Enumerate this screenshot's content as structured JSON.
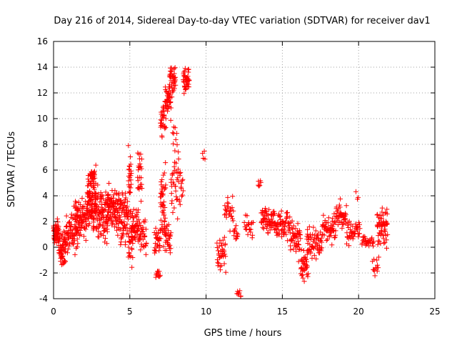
{
  "chart_data": {
    "type": "scatter",
    "title": "Day 216 of 2014, Sidereal Day-to-day VTEC variation (SDTVAR) for receiver dav1",
    "xlabel": "GPS time / hours",
    "ylabel": "SDTVAR / TECUs",
    "xlim": [
      0,
      25
    ],
    "ylim": [
      -4,
      16
    ],
    "xticks": [
      0,
      5,
      10,
      15,
      20,
      25
    ],
    "xtick_labels": [
      "0",
      "5",
      "10",
      "15",
      "20",
      "25"
    ],
    "yticks": [
      -4,
      -2,
      0,
      2,
      4,
      6,
      8,
      10,
      12,
      14,
      16
    ],
    "ytick_labels": [
      "-4",
      "-2",
      "0",
      "2",
      "4",
      "6",
      "8",
      "10",
      "12",
      "14",
      "16"
    ],
    "grid": true,
    "marker": "+",
    "color": "#ff0000",
    "series": [
      {
        "name": "SDTVAR",
        "clusters": [
          {
            "x": [
              0.0,
              0.35
            ],
            "y_center": 1.2,
            "y_spread": 0.9,
            "n": 60
          },
          {
            "x": [
              0.35,
              0.8
            ],
            "y_center": 0.2,
            "y_spread": 1.2,
            "n": 50
          },
          {
            "x": [
              0.5,
              0.8
            ],
            "y_center": -1.0,
            "y_spread": 0.4,
            "n": 10
          },
          {
            "x": [
              0.8,
              1.6
            ],
            "y_center": 1.2,
            "y_spread": 1.5,
            "n": 70
          },
          {
            "x": [
              1.4,
              2.2
            ],
            "y_center": 2.3,
            "y_spread": 1.6,
            "n": 80
          },
          {
            "x": [
              2.2,
              2.8
            ],
            "y_center": 3.6,
            "y_spread": 2.2,
            "n": 110
          },
          {
            "x": [
              2.4,
              2.7
            ],
            "y_center": 5.6,
            "y_spread": 0.5,
            "n": 20
          },
          {
            "x": [
              2.8,
              3.6
            ],
            "y_center": 2.4,
            "y_spread": 1.8,
            "n": 90
          },
          {
            "x": [
              3.5,
              4.3
            ],
            "y_center": 3.0,
            "y_spread": 1.7,
            "n": 90
          },
          {
            "x": [
              4.3,
              4.9
            ],
            "y_center": 2.2,
            "y_spread": 2.0,
            "n": 70
          },
          {
            "x": [
              4.9,
              5.1
            ],
            "y_center": 5.5,
            "y_spread": 2.5,
            "n": 25
          },
          {
            "x": [
              4.9,
              5.2
            ],
            "y_center": 0.2,
            "y_spread": 1.8,
            "n": 25
          },
          {
            "x": [
              5.1,
              5.6
            ],
            "y_center": 1.6,
            "y_spread": 1.4,
            "n": 50
          },
          {
            "x": [
              5.5,
              5.8
            ],
            "y_center": 5.5,
            "y_spread": 2.0,
            "n": 25
          },
          {
            "x": [
              5.6,
              6.1
            ],
            "y_center": 0.9,
            "y_spread": 1.1,
            "n": 35
          },
          {
            "x": [
              6.6,
              7.0
            ],
            "y_center": 0.5,
            "y_spread": 1.0,
            "n": 30
          },
          {
            "x": [
              6.7,
              7.0
            ],
            "y_center": -2.1,
            "y_spread": 0.3,
            "n": 12
          },
          {
            "x": [
              7.0,
              7.35
            ],
            "y_center": 3.5,
            "y_spread": 3.0,
            "n": 50
          },
          {
            "x": [
              7.0,
              7.3
            ],
            "y_center": 10.0,
            "y_spread": 1.2,
            "n": 25
          },
          {
            "x": [
              7.3,
              7.7
            ],
            "y_center": 11.5,
            "y_spread": 1.5,
            "n": 40
          },
          {
            "x": [
              7.3,
              7.7
            ],
            "y_center": 0.8,
            "y_spread": 1.2,
            "n": 30
          },
          {
            "x": [
              7.6,
              8.0
            ],
            "y_center": 13.0,
            "y_spread": 1.2,
            "n": 40
          },
          {
            "x": [
              7.7,
              8.2
            ],
            "y_center": 6.0,
            "y_spread": 3.0,
            "n": 40
          },
          {
            "x": [
              8.2,
              8.5
            ],
            "y_center": 4.5,
            "y_spread": 1.0,
            "n": 15
          },
          {
            "x": [
              8.5,
              8.9
            ],
            "y_center": 13.0,
            "y_spread": 1.1,
            "n": 40
          },
          {
            "x": [
              9.75,
              9.95
            ],
            "y_center": 7.0,
            "y_spread": 0.8,
            "n": 4
          },
          {
            "x": [
              10.7,
              11.3
            ],
            "y_center": -0.5,
            "y_spread": 1.3,
            "n": 35
          },
          {
            "x": [
              11.2,
              11.8
            ],
            "y_center": 2.7,
            "y_spread": 1.2,
            "n": 25
          },
          {
            "x": [
              11.8,
              12.1
            ],
            "y_center": 1.0,
            "y_spread": 0.6,
            "n": 12
          },
          {
            "x": [
              12.0,
              12.3
            ],
            "y_center": -3.7,
            "y_spread": 0.25,
            "n": 8
          },
          {
            "x": [
              12.5,
              13.1
            ],
            "y_center": 1.8,
            "y_spread": 1.0,
            "n": 20
          },
          {
            "x": [
              13.4,
              13.6
            ],
            "y_center": 4.9,
            "y_spread": 0.35,
            "n": 6
          },
          {
            "x": [
              13.6,
              14.5
            ],
            "y_center": 2.2,
            "y_spread": 1.2,
            "n": 60
          },
          {
            "x": [
              14.5,
              15.5
            ],
            "y_center": 1.7,
            "y_spread": 1.0,
            "n": 60
          },
          {
            "x": [
              15.5,
              16.2
            ],
            "y_center": 0.7,
            "y_spread": 1.3,
            "n": 50
          },
          {
            "x": [
              16.2,
              16.7
            ],
            "y_center": -1.4,
            "y_spread": 1.1,
            "n": 40
          },
          {
            "x": [
              16.6,
              17.6
            ],
            "y_center": 0.3,
            "y_spread": 1.3,
            "n": 60
          },
          {
            "x": [
              17.6,
              18.5
            ],
            "y_center": 1.4,
            "y_spread": 0.9,
            "n": 55
          },
          {
            "x": [
              18.5,
              19.2
            ],
            "y_center": 2.4,
            "y_spread": 1.0,
            "n": 45
          },
          {
            "x": [
              19.2,
              20.1
            ],
            "y_center": 1.2,
            "y_spread": 0.8,
            "n": 45
          },
          {
            "x": [
              19.8,
              20.0
            ],
            "y_center": 4.2,
            "y_spread": 0.4,
            "n": 3
          },
          {
            "x": [
              20.2,
              21.0
            ],
            "y_center": 0.4,
            "y_spread": 0.4,
            "n": 30
          },
          {
            "x": [
              20.9,
              21.3
            ],
            "y_center": -1.5,
            "y_spread": 0.6,
            "n": 12
          },
          {
            "x": [
              21.2,
              21.9
            ],
            "y_center": 1.3,
            "y_spread": 1.7,
            "n": 60
          }
        ]
      }
    ]
  }
}
